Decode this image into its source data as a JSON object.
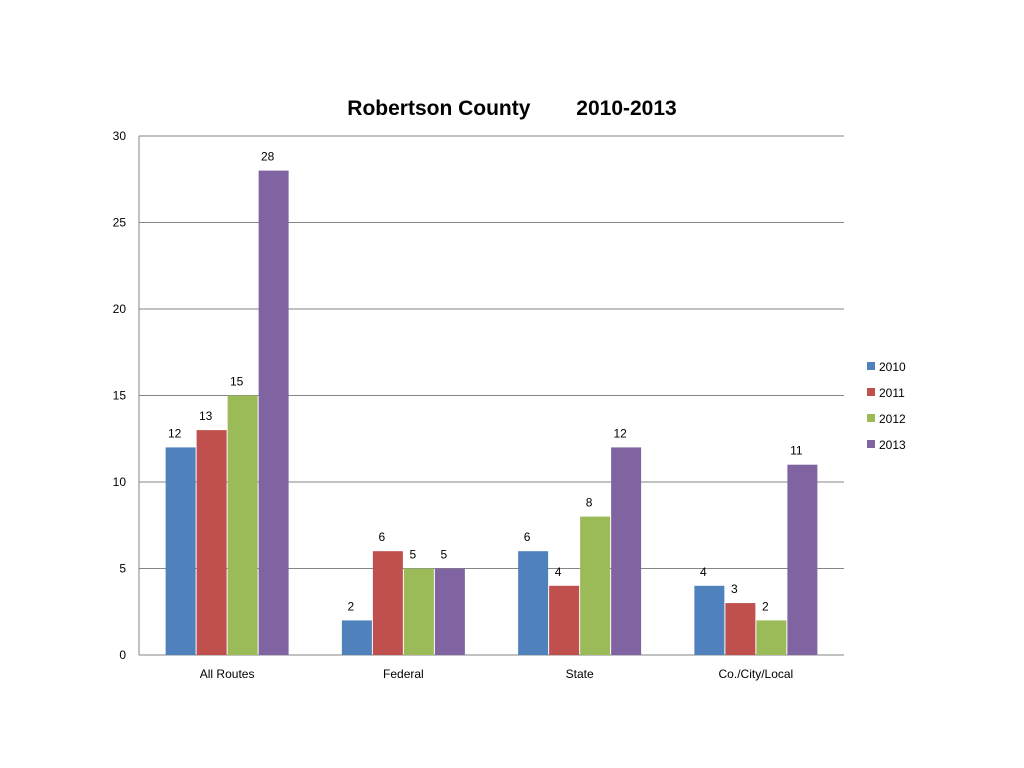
{
  "title_parts": [
    "Robertson County",
    "2010-2013"
  ],
  "chart_data": {
    "type": "bar",
    "title": "Robertson County 2010-2013",
    "categories": [
      "All Routes",
      "Federal",
      "State",
      "Co./City/Local"
    ],
    "series": [
      {
        "name": "2010",
        "color": "#4F81BD",
        "values": [
          12,
          2,
          6,
          4
        ]
      },
      {
        "name": "2011",
        "color": "#C0504D",
        "values": [
          13,
          6,
          4,
          3
        ]
      },
      {
        "name": "2012",
        "color": "#9BBB59",
        "values": [
          15,
          5,
          8,
          2
        ]
      },
      {
        "name": "2013",
        "color": "#8064A2",
        "values": [
          28,
          5,
          12,
          11
        ]
      }
    ],
    "ylim": [
      0,
      30
    ],
    "yticks": [
      0,
      5,
      10,
      15,
      20,
      25,
      30
    ],
    "grid": true,
    "legend": "right",
    "data_labels": true
  }
}
